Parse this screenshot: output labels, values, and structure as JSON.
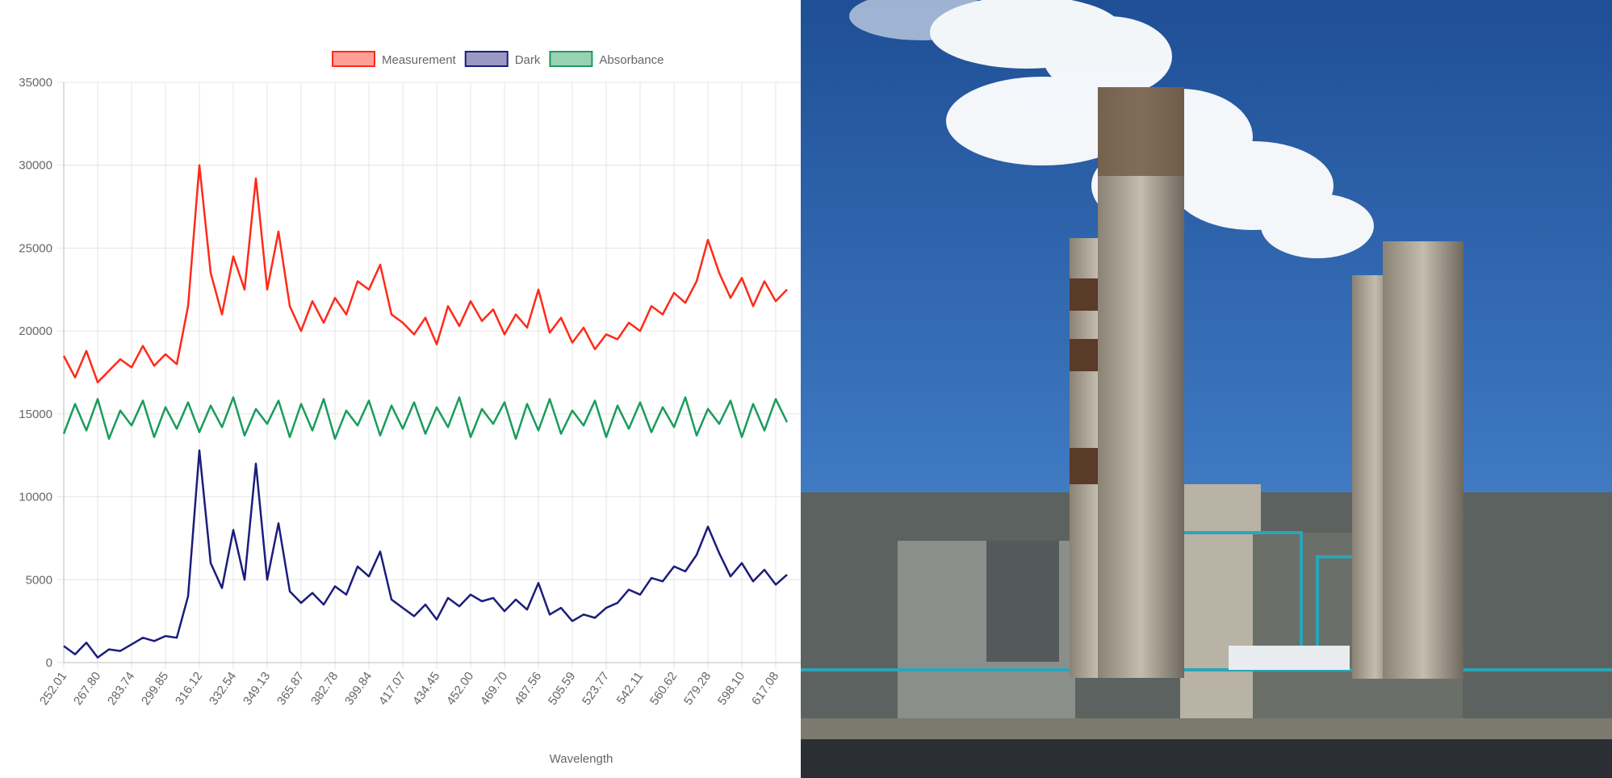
{
  "chart_data": {
    "type": "line",
    "x_label": "Wavelength",
    "categories": [
      "252.01",
      null,
      null,
      "267.80",
      null,
      null,
      "283.74",
      null,
      null,
      "299.85",
      null,
      null,
      "316.12",
      null,
      null,
      "332.54",
      null,
      null,
      "349.13",
      null,
      null,
      "365.87",
      null,
      null,
      "382.78",
      null,
      null,
      "399.84",
      null,
      null,
      "417.07",
      null,
      null,
      "434.45",
      null,
      null,
      "452.00",
      null,
      null,
      "469.70",
      null,
      null,
      "487.56",
      null,
      null,
      "505.59",
      null,
      null,
      "523.77",
      null,
      null,
      "542.11",
      null,
      null,
      "560.62",
      null,
      null,
      "579.28",
      null,
      null,
      "598.10",
      null,
      null,
      "617.08",
      null
    ],
    "series": [
      {
        "name": "Measurement",
        "color": "#ff2a1a",
        "values": [
          18500,
          17200,
          18800,
          16900,
          17600,
          18300,
          17800,
          19100,
          17900,
          18600,
          18000,
          21500,
          30000,
          23500,
          21000,
          24500,
          22500,
          29200,
          22500,
          26000,
          21500,
          20000,
          21800,
          20500,
          22000,
          21000,
          23000,
          22500,
          24000,
          21000,
          20500,
          19800,
          20800,
          19200,
          21500,
          20300,
          21800,
          20600,
          21300,
          19800,
          21000,
          20200,
          22500,
          19900,
          20800,
          19300,
          20200,
          18900,
          19800,
          19500,
          20500,
          20000,
          21500,
          21000,
          22300,
          21700,
          23000,
          25500,
          23500,
          22000,
          23200,
          21500,
          23000,
          21800,
          22500
        ]
      },
      {
        "name": "Dark",
        "color": "#1c1c7c",
        "values": [
          1000,
          500,
          1200,
          300,
          800,
          700,
          1100,
          1500,
          1300,
          1600,
          1500,
          4000,
          12800,
          6000,
          4500,
          8000,
          5000,
          12000,
          5000,
          8400,
          4300,
          3600,
          4200,
          3500,
          4600,
          4100,
          5800,
          5200,
          6700,
          3800,
          3300,
          2800,
          3500,
          2600,
          3900,
          3400,
          4100,
          3700,
          3900,
          3100,
          3800,
          3200,
          4800,
          2900,
          3300,
          2500,
          2900,
          2700,
          3300,
          3600,
          4400,
          4100,
          5100,
          4900,
          5800,
          5500,
          6500,
          8200,
          6600,
          5200,
          6000,
          4900,
          5600,
          4700,
          5300
        ]
      },
      {
        "name": "Absorbance",
        "color": "#1a9c5c",
        "values": [
          13800,
          15600,
          14000,
          15900,
          13500,
          15200,
          14300,
          15800,
          13600,
          15400,
          14100,
          15700,
          13900,
          15500,
          14200,
          16000,
          13700,
          15300,
          14400,
          15800,
          13600,
          15600,
          14000,
          15900,
          13500,
          15200,
          14300,
          15800,
          13700,
          15500,
          14100,
          15700,
          13800,
          15400,
          14200,
          16000,
          13600,
          15300,
          14400,
          15700,
          13500,
          15600,
          14000,
          15900,
          13800,
          15200,
          14300,
          15800,
          13600,
          15500,
          14100,
          15700,
          13900,
          15400,
          14200,
          16000,
          13700,
          15300,
          14400,
          15800,
          13600,
          15600,
          14000,
          15900,
          14500
        ]
      }
    ],
    "ylim": [
      0,
      35000
    ],
    "yticks": [
      0,
      5000,
      10000,
      15000,
      20000,
      25000,
      30000,
      35000
    ],
    "grid": true,
    "legend": "top"
  }
}
